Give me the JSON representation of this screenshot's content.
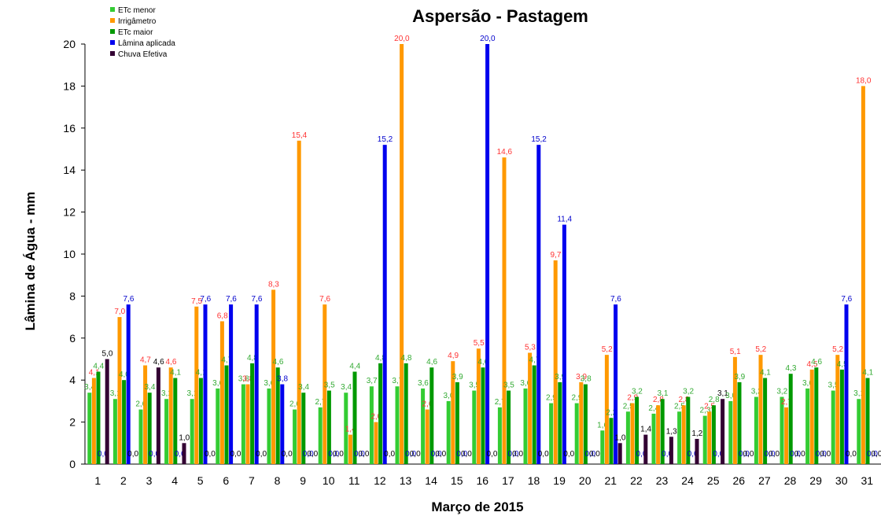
{
  "chart_data": {
    "type": "bar",
    "title": "Aspersão - Pastagem",
    "xlabel": "Março de 2015",
    "ylabel": "Lâmina de Água - mm",
    "ylim": [
      0,
      20
    ],
    "yticks": [
      0,
      2,
      4,
      6,
      8,
      10,
      12,
      14,
      16,
      18,
      20
    ],
    "grid": false,
    "legend_position": "top-left",
    "categories": [
      "1",
      "2",
      "3",
      "4",
      "5",
      "6",
      "7",
      "8",
      "9",
      "10",
      "11",
      "12",
      "13",
      "14",
      "15",
      "16",
      "17",
      "18",
      "19",
      "20",
      "21",
      "22",
      "23",
      "24",
      "25",
      "26",
      "27",
      "28",
      "29",
      "30",
      "31"
    ],
    "series": [
      {
        "name": "ETc menor",
        "color": "#33cc33",
        "values": [
          3.4,
          3.1,
          2.6,
          3.1,
          3.1,
          3.6,
          3.8,
          3.6,
          2.6,
          2.7,
          3.4,
          3.7,
          3.7,
          3.6,
          3.0,
          3.5,
          2.7,
          3.6,
          2.9,
          2.9,
          1.6,
          2.5,
          2.4,
          2.5,
          2.3,
          3.0,
          3.2,
          3.2,
          3.6,
          3.5,
          3.1
        ]
      },
      {
        "name": "Irrigâmetro",
        "color": "#ff9900",
        "values": [
          4.1,
          7.0,
          4.7,
          4.6,
          7.5,
          6.8,
          3.8,
          8.3,
          15.4,
          7.6,
          1.4,
          2.0,
          20.0,
          2.6,
          4.9,
          5.5,
          14.6,
          5.3,
          9.7,
          3.9,
          5.2,
          2.9,
          2.8,
          2.8,
          2.5,
          5.1,
          5.2,
          2.7,
          4.5,
          5.2,
          18.0
        ]
      },
      {
        "name": "ETc maior",
        "color": "#009900",
        "values": [
          4.4,
          4.0,
          3.4,
          4.1,
          4.1,
          4.7,
          4.8,
          4.6,
          3.4,
          3.5,
          4.4,
          4.8,
          4.8,
          4.6,
          3.9,
          4.6,
          3.5,
          4.7,
          3.9,
          3.8,
          2.2,
          3.2,
          3.1,
          3.2,
          2.8,
          3.9,
          4.1,
          4.3,
          4.6,
          4.5,
          4.1
        ]
      },
      {
        "name": "Lâmina aplicada",
        "color": "#0000ee",
        "values": [
          0,
          7.6,
          0,
          0,
          7.6,
          7.6,
          7.6,
          3.8,
          0,
          0,
          0,
          15.2,
          0,
          0,
          0,
          20.0,
          0,
          15.2,
          11.4,
          0,
          7.6,
          0,
          0,
          0,
          0,
          0,
          0,
          0,
          0,
          7.6,
          0
        ]
      },
      {
        "name": "Chuva Efetiva",
        "color": "#330033",
        "values": [
          5.0,
          0,
          4.6,
          1.0,
          0,
          0,
          0,
          0,
          0,
          0,
          0,
          0,
          0,
          0,
          0,
          0,
          0,
          0,
          0,
          0,
          1.0,
          1.4,
          1.3,
          1.2,
          3.1,
          0,
          0,
          0,
          0,
          0,
          0
        ]
      }
    ]
  }
}
